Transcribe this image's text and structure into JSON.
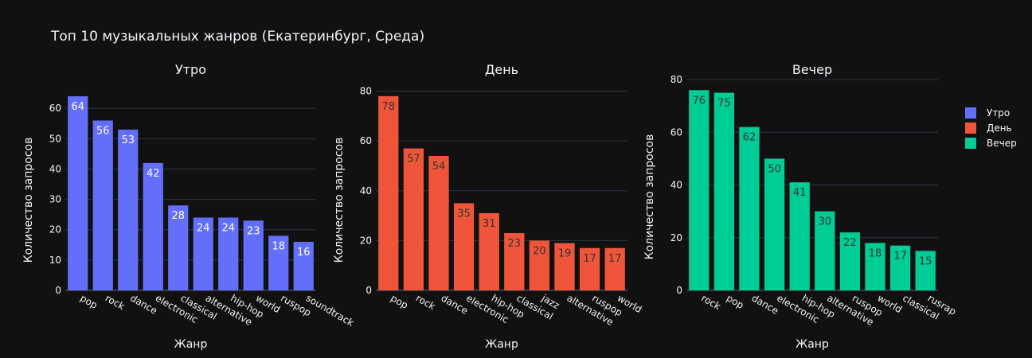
{
  "title": "Топ 10 музыкальных жанров (Екатеринбург, Среда)",
  "legend": [
    {
      "name": "Утро",
      "color": "#636efa"
    },
    {
      "name": "День",
      "color": "#ef553b"
    },
    {
      "name": "Вечер",
      "color": "#00cc96"
    }
  ],
  "chart_data": [
    {
      "type": "bar",
      "title": "Утро",
      "xlabel": "Жанр",
      "ylabel": "Количество запросов",
      "color": "#636efa",
      "label_color": "#ffffff",
      "categories": [
        "pop",
        "rock",
        "dance",
        "electronic",
        "classical",
        "alternative",
        "hip-hop",
        "world",
        "ruspop",
        "soundtrack"
      ],
      "values": [
        64,
        56,
        53,
        42,
        28,
        24,
        24,
        23,
        18,
        16
      ],
      "ylim": [
        0,
        67.4
      ],
      "yticks": [
        0,
        10,
        20,
        30,
        40,
        50,
        60
      ]
    },
    {
      "type": "bar",
      "title": "День",
      "xlabel": "Жанр",
      "ylabel": "Количество запросов",
      "color": "#ef553b",
      "label_color": "#333333",
      "categories": [
        "pop",
        "rock",
        "dance",
        "electronic",
        "hip-hop",
        "classical",
        "jazz",
        "alternative",
        "ruspop",
        "world"
      ],
      "values": [
        78,
        57,
        54,
        35,
        31,
        23,
        20,
        19,
        17,
        17
      ],
      "ylim": [
        0,
        82.1
      ],
      "yticks": [
        0,
        20,
        40,
        60,
        80
      ]
    },
    {
      "type": "bar",
      "title": "Вечер",
      "xlabel": "Жанр",
      "ylabel": "Количество запросов",
      "color": "#00cc96",
      "label_color": "#333333",
      "categories": [
        "rock",
        "pop",
        "dance",
        "electronic",
        "hip-hop",
        "alternative",
        "ruspop",
        "world",
        "classical",
        "rusrap"
      ],
      "values": [
        76,
        75,
        62,
        50,
        41,
        30,
        22,
        18,
        17,
        15
      ],
      "ylim": [
        0,
        80
      ],
      "yticks": [
        0,
        20,
        40,
        60,
        80
      ]
    }
  ]
}
